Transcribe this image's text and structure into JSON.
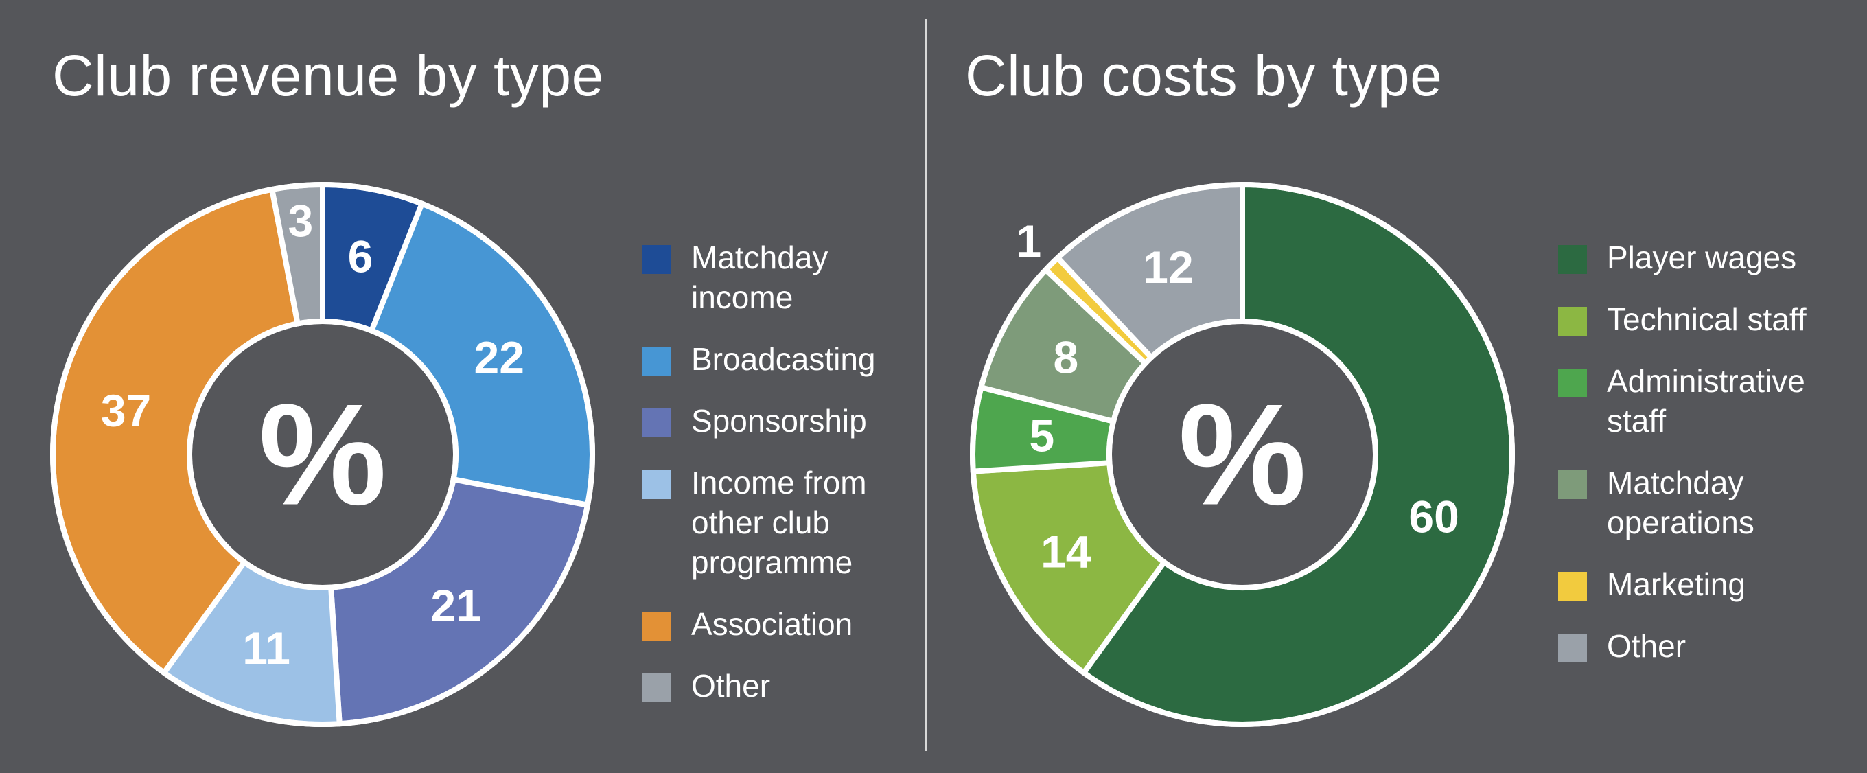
{
  "chart_data": [
    {
      "type": "pie",
      "title": "Club revenue by type",
      "center_label": "%",
      "categories": [
        "Matchday income",
        "Broadcasting",
        "Sponsorship",
        "Income from other club programme",
        "Association",
        "Other"
      ],
      "legend_labels": [
        "Matchday\nincome",
        "Broadcasting",
        "Sponsorship",
        "Income from\nother club\nprogramme",
        "Association",
        "Other"
      ],
      "values": [
        6,
        22,
        21,
        11,
        37,
        3
      ],
      "colors": [
        "#1e4c96",
        "#4796d4",
        "#6474b4",
        "#9cc1e6",
        "#e39136",
        "#9aa1a9"
      ],
      "legend_position": "right"
    },
    {
      "type": "pie",
      "title": "Club costs by type",
      "center_label": "%",
      "categories": [
        "Player wages",
        "Technical staff",
        "Administrative staff",
        "Matchday operations",
        "Marketing",
        "Other"
      ],
      "legend_labels": [
        "Player wages",
        "Technical staff",
        "Administrative\nstaff",
        "Matchday\noperations",
        "Marketing",
        "Other"
      ],
      "values": [
        60,
        14,
        5,
        8,
        1,
        12
      ],
      "colors": [
        "#2c6a41",
        "#8cb743",
        "#4ea64e",
        "#7e9b7a",
        "#f2cb3e",
        "#9aa1a9"
      ],
      "legend_position": "right"
    }
  ]
}
